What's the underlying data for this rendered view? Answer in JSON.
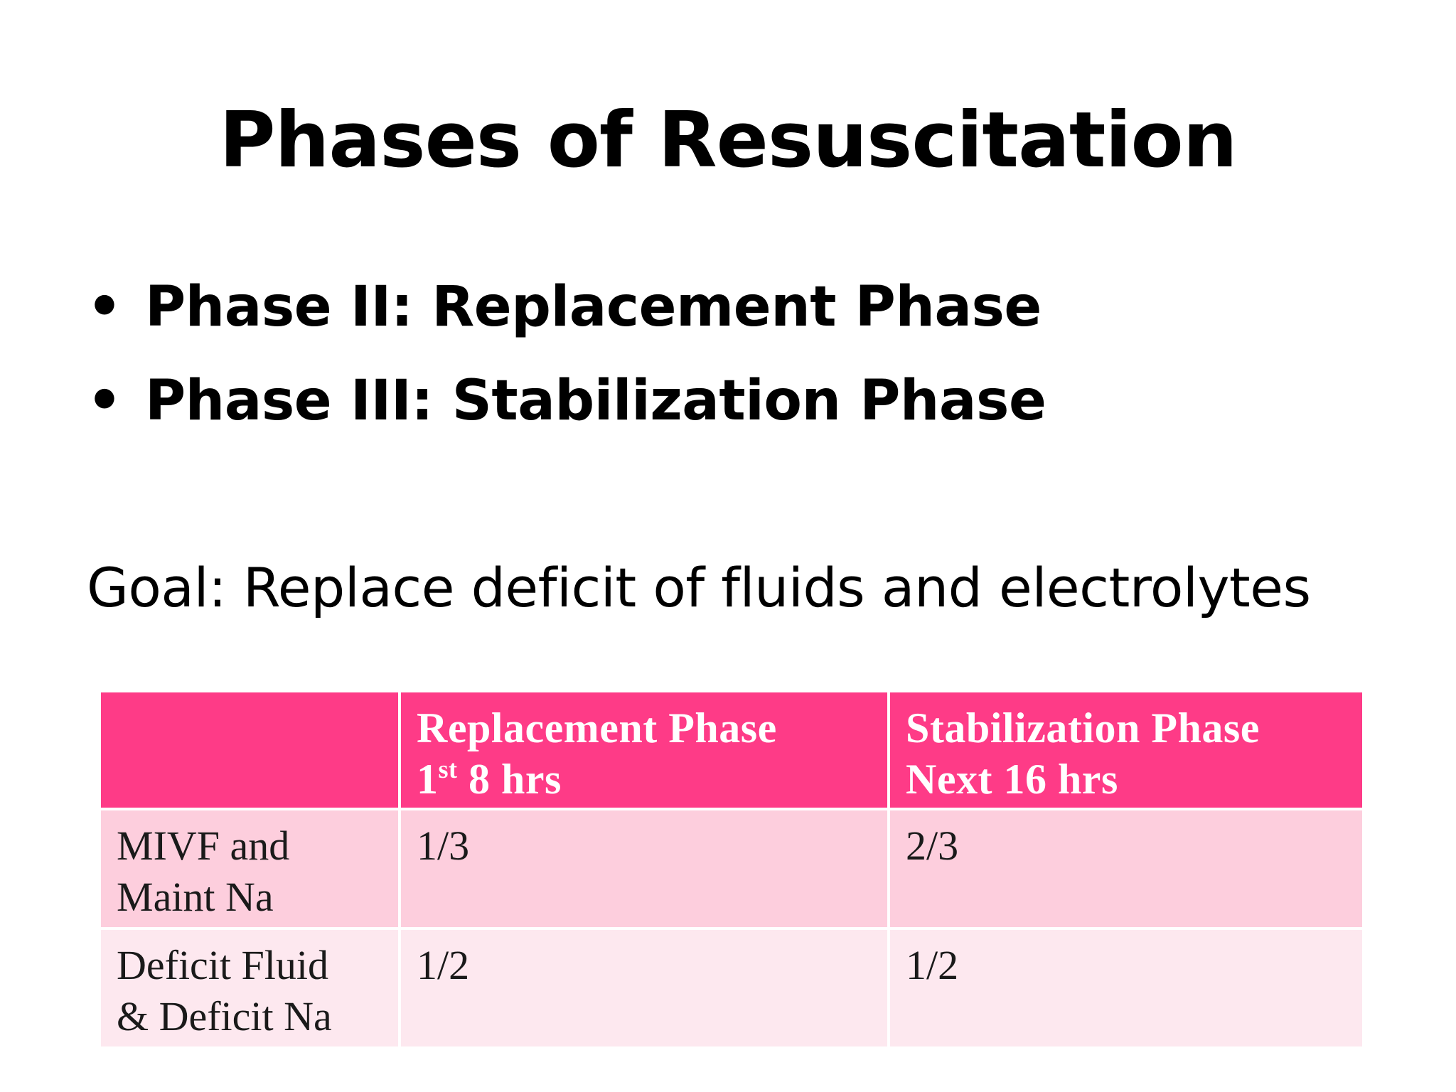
{
  "slide": {
    "title": "Phases of Resuscitation",
    "bullets": [
      {
        "marker": "•",
        "text": "Phase II: Replacement Phase"
      },
      {
        "marker": "•",
        "text": "Phase III: Stabilization Phase"
      }
    ],
    "goal": "Goal: Replace deficit of fluids and electrolytes"
  },
  "table": {
    "header": {
      "empty": "",
      "col1_line1": "Replacement Phase",
      "col1_line2_num": "1",
      "col1_line2_sup": "st",
      "col1_line2_rest": " 8 hrs",
      "col2_line1": "Stabilization Phase",
      "col2_line2": "Next 16 hrs"
    },
    "rows": [
      {
        "label_line1": "MIVF and",
        "label_line2": "Maint Na",
        "replacement": "1/3",
        "stabilization": "2/3"
      },
      {
        "label_line1": "Deficit Fluid",
        "label_line2": "& Deficit Na",
        "replacement": "1/2",
        "stabilization": "1/2"
      }
    ]
  },
  "colors": {
    "header_bg": "#fe3b87",
    "row_a_bg": "#fdcedd",
    "row_b_bg": "#fde8ef",
    "header_text": "#ffffff"
  }
}
